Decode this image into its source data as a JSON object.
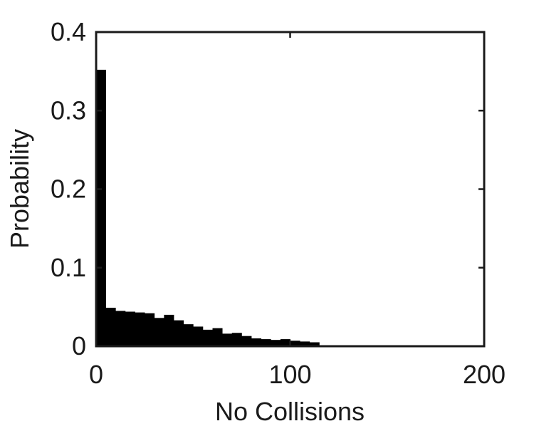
{
  "chart_data": {
    "type": "bar",
    "title": "",
    "xlabel": "No Collisions",
    "ylabel": "Probability",
    "xlim": [
      0,
      200
    ],
    "ylim": [
      0,
      0.4
    ],
    "xticks": [
      0,
      100,
      200
    ],
    "xtick_labels": [
      "0",
      "100",
      "200"
    ],
    "yticks": [
      0,
      0.1,
      0.2,
      0.3,
      0.4
    ],
    "ytick_labels": [
      "0",
      "0.1",
      "0.2",
      "0.3",
      "0.4"
    ],
    "grid": false,
    "bin_width": 5,
    "bin_edges": [
      0,
      5,
      10,
      15,
      20,
      25,
      30,
      35,
      40,
      45,
      50,
      55,
      60,
      65,
      70,
      75,
      80,
      85,
      90,
      95,
      100,
      105,
      110
    ],
    "values": [
      0.352,
      0.049,
      0.045,
      0.044,
      0.043,
      0.042,
      0.036,
      0.04,
      0.033,
      0.028,
      0.025,
      0.021,
      0.023,
      0.016,
      0.017,
      0.013,
      0.01,
      0.009,
      0.008,
      0.009,
      0.007,
      0.006,
      0.005
    ],
    "bar_color": "#000000"
  }
}
